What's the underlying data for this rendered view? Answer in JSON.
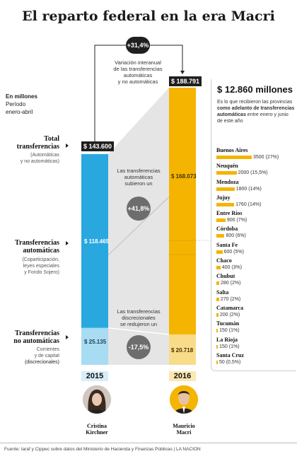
{
  "title": "El reparto federal en la era Macri",
  "units": {
    "line1": "En millones",
    "line2": "Período",
    "line3": "enero-abril"
  },
  "row_labels": [
    {
      "main1": "Total",
      "main2": "transferencias",
      "sub1": "(Automáticas",
      "sub2": "y no automáticas)",
      "sub3": ""
    },
    {
      "main1": "Transferencias",
      "main2": "automáticas",
      "sub1": "(Coparticipación,",
      "sub2": "leyes especiales",
      "sub3": "y Fondo Sojero)"
    },
    {
      "main1": "Transferencias",
      "main2": "no automáticas",
      "sub1": "Corrientes",
      "sub2": "y de capital",
      "sub3": "(discrecionales)"
    }
  ],
  "variation": {
    "pct": "+31,4%",
    "text1": "Variación interanual",
    "text2": "de las transferencias",
    "text3": "automáticas",
    "text4": "y no automáticas"
  },
  "auto_note": {
    "pct": "+41,8%",
    "text1": "Las transferencias",
    "text2": "automáticas",
    "text3": "subieron un"
  },
  "disc_note": {
    "pct": "-17,5%",
    "text1": "Las transferencias",
    "text2": "discrecionales",
    "text3": "se redujeron un"
  },
  "colors": {
    "blue": "#29a8e0",
    "lightblue": "#a8dcf2",
    "yellow": "#f4b400",
    "lightyellow": "#f9dc8a",
    "gray": "#e5e5e5",
    "dark": "#1f1f1f"
  },
  "chart_data": {
    "type": "bar",
    "categories": [
      "2015",
      "2016"
    ],
    "series": [
      {
        "name": "Transferencias automáticas",
        "values": [
          118465,
          168073
        ],
        "labels": [
          "$ 118.465",
          "$ 168.073"
        ]
      },
      {
        "name": "Transferencias no automáticas",
        "values": [
          25135,
          20718
        ],
        "labels": [
          "$ 25.135",
          "$ 20.718"
        ]
      }
    ],
    "totals": [
      143600,
      188791
    ],
    "total_labels": [
      "$ 143.600",
      "$ 188.791"
    ]
  },
  "years": [
    {
      "year": "2015",
      "first": "Cristina",
      "last": "Kirchner"
    },
    {
      "year": "2016",
      "first": "Mauricio",
      "last": "Macri"
    }
  ],
  "panel": {
    "headline": "$ 12.860 millones",
    "text1": "Es lo que recibieron las provincias",
    "text2": "como adelanto de transferencias",
    "text3": "automáticas",
    "text4": " entre enero y junio",
    "text5": "de este año",
    "provinces_chart": {
      "type": "bar",
      "categories": [
        "Buenos Aires",
        "Neuquén",
        "Mendoza",
        "Jujuy",
        "Entre Ríos",
        "Córdoba",
        "Santa Fe",
        "Chaco",
        "Chubut",
        "Salta",
        "Catamarca",
        "Tucumán",
        "La Rioja",
        "Santa Cruz"
      ],
      "values": [
        3500,
        2000,
        1800,
        1760,
        900,
        800,
        600,
        400,
        280,
        270,
        200,
        150,
        150,
        50
      ],
      "labels": [
        "3500 (27%)",
        "2000 (15,5%)",
        "1800 (14%)",
        "1760 (14%)",
        "900 (7%)",
        "800 (6%)",
        "600 (5%)",
        "400 (3%)",
        "280 (2%)",
        "270 (2%)",
        "200 (2%)",
        "150 (1%)",
        "150 (1%)",
        "50 (0,5%)"
      ]
    }
  },
  "source": "Fuente: Iaraf y Cippec sobre datos del Ministerio de Hacienda y Finanzas Públicas | LA NACION"
}
